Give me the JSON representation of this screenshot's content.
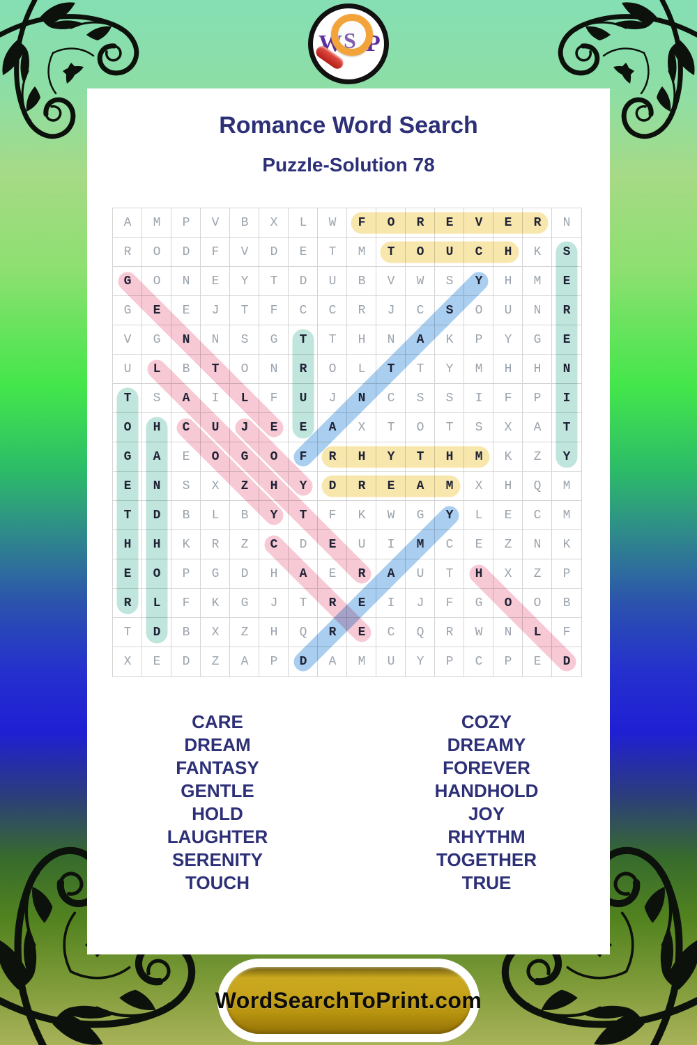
{
  "logo": {
    "w": "W",
    "s": "S",
    "p": "P"
  },
  "header": {
    "title": "Romance Word Search",
    "subtitle": "Puzzle-Solution 78"
  },
  "grid": {
    "rows": [
      "AMPVBXLWFOREVERN",
      "RODFVDETMTOUCHKS",
      "GONEYTDUBVWSYHME",
      "GEEJTFCCRJCSOUNR",
      "VGNNSGTTHNAKPYGE",
      "ULBTONROLTTYMHHN",
      "TSAILFUJNCSSIFPI",
      "OHCUJEEAXTOTSXAT",
      "GAEOGOFRHYTHMKZY",
      "ENSXZHYDREAMXHQM",
      "TDBLBYTFKWGYLECM",
      "HHKRZCDEUIMCEZNK",
      "EOPGDHAERAUTHXZP",
      "RLFKGJTREIJFGOOB",
      "TDBXZHQRECQRWNLF",
      "XEDZAPDAMUYPCPED"
    ],
    "cell_size": 42
  },
  "palette": {
    "yellow": "#f8e7ad",
    "teal": "#bfe5dd",
    "pink": "#f7c9d5",
    "blue": "#a9cef0"
  },
  "words": [
    {
      "word": "FOREVER",
      "start": [
        0,
        8
      ],
      "end": [
        0,
        14
      ],
      "color": "yellow"
    },
    {
      "word": "TOUCH",
      "start": [
        1,
        9
      ],
      "end": [
        1,
        13
      ],
      "color": "yellow"
    },
    {
      "word": "RHYTHM",
      "start": [
        8,
        7
      ],
      "end": [
        8,
        12
      ],
      "color": "yellow"
    },
    {
      "word": "DREAM",
      "start": [
        9,
        7
      ],
      "end": [
        9,
        11
      ],
      "color": "yellow"
    },
    {
      "word": "SERENITY",
      "start": [
        1,
        15
      ],
      "end": [
        8,
        15
      ],
      "color": "teal"
    },
    {
      "word": "TRUE",
      "start": [
        4,
        6
      ],
      "end": [
        7,
        6
      ],
      "color": "teal"
    },
    {
      "word": "TOGETHER",
      "start": [
        6,
        0
      ],
      "end": [
        13,
        0
      ],
      "color": "teal"
    },
    {
      "word": "HANDHOLD",
      "start": [
        7,
        1
      ],
      "end": [
        14,
        1
      ],
      "color": "teal"
    },
    {
      "word": "GENTLE",
      "start": [
        2,
        0
      ],
      "end": [
        7,
        5
      ],
      "color": "pink"
    },
    {
      "word": "LAUGHTER",
      "start": [
        5,
        1
      ],
      "end": [
        12,
        8
      ],
      "color": "pink"
    },
    {
      "word": "COZY",
      "start": [
        7,
        2
      ],
      "end": [
        10,
        5
      ],
      "color": "pink"
    },
    {
      "word": "JOY",
      "start": [
        7,
        4
      ],
      "end": [
        9,
        6
      ],
      "color": "pink"
    },
    {
      "word": "CARE",
      "start": [
        11,
        5
      ],
      "end": [
        14,
        8
      ],
      "color": "pink"
    },
    {
      "word": "HOLD",
      "start": [
        12,
        12
      ],
      "end": [
        15,
        15
      ],
      "color": "pink"
    },
    {
      "word": "FANTASY",
      "start": [
        8,
        6
      ],
      "end": [
        2,
        12
      ],
      "color": "blue"
    },
    {
      "word": "DREAMY",
      "start": [
        15,
        6
      ],
      "end": [
        10,
        11
      ],
      "color": "blue"
    }
  ],
  "word_list": {
    "left": [
      "CARE",
      "DREAM",
      "FANTASY",
      "GENTLE",
      "HOLD",
      "LAUGHTER",
      "SERENITY",
      "TOUCH"
    ],
    "right": [
      "COZY",
      "DREAMY",
      "FOREVER",
      "HANDHOLD",
      "JOY",
      "RHYTHM",
      "TOGETHER",
      "TRUE"
    ]
  },
  "footer": {
    "button_label": "WordSearchToPrint.com"
  },
  "colors": {
    "title_navy": "#2d3077",
    "logo_purple": "#5b2e9e",
    "lens_orange": "#f2a43a",
    "handle_red": "#c6281e",
    "button_gold": "#c7a41c",
    "letter_gray": "#9ba3ac",
    "letter_dark": "#1f2235",
    "grid_line": "#d4d4d4"
  }
}
